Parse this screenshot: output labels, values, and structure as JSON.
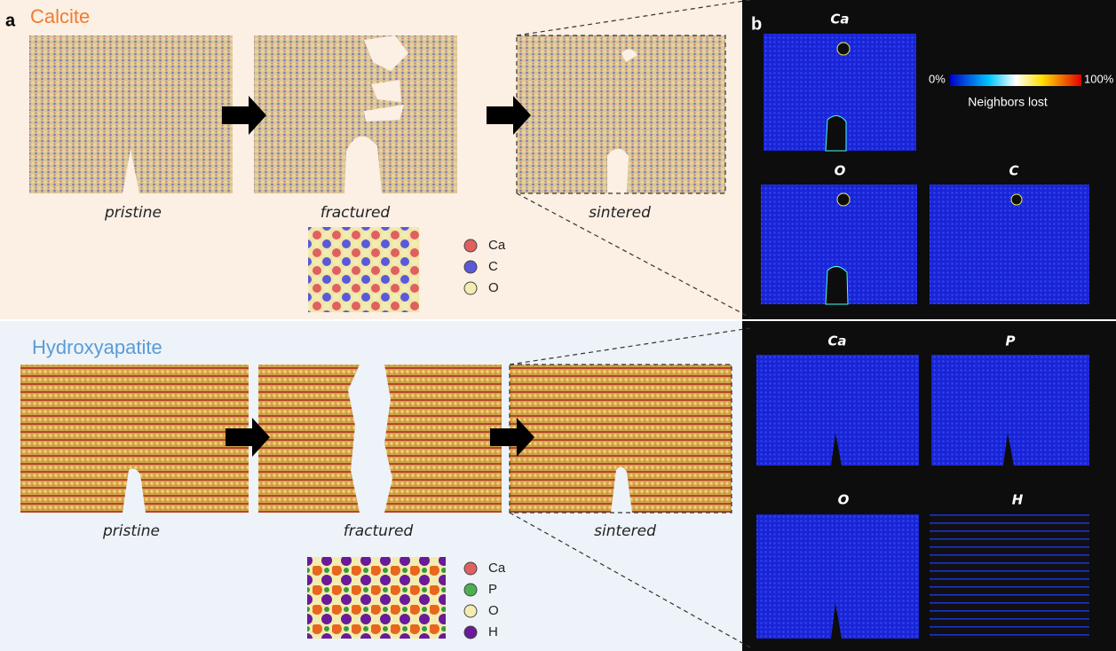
{
  "panel_a": {
    "label": "a",
    "calcite": {
      "title": "Calcite",
      "stages": [
        "pristine",
        "fractured",
        "sintered"
      ],
      "legend": [
        "Ca",
        "C",
        "O"
      ]
    },
    "hydroxyapatite": {
      "title": "Hydroxyapatite",
      "stages": [
        "pristine",
        "fractured",
        "sintered"
      ],
      "legend": [
        "Ca",
        "P",
        "O",
        "H"
      ]
    }
  },
  "panel_b": {
    "label": "b",
    "colorbar": {
      "min": "0%",
      "max": "100%",
      "title": "Neighbors lost"
    },
    "calcite_maps": [
      "Ca",
      "O",
      "C"
    ],
    "hydroxyapatite_maps": [
      "Ca",
      "P",
      "O",
      "H"
    ]
  }
}
